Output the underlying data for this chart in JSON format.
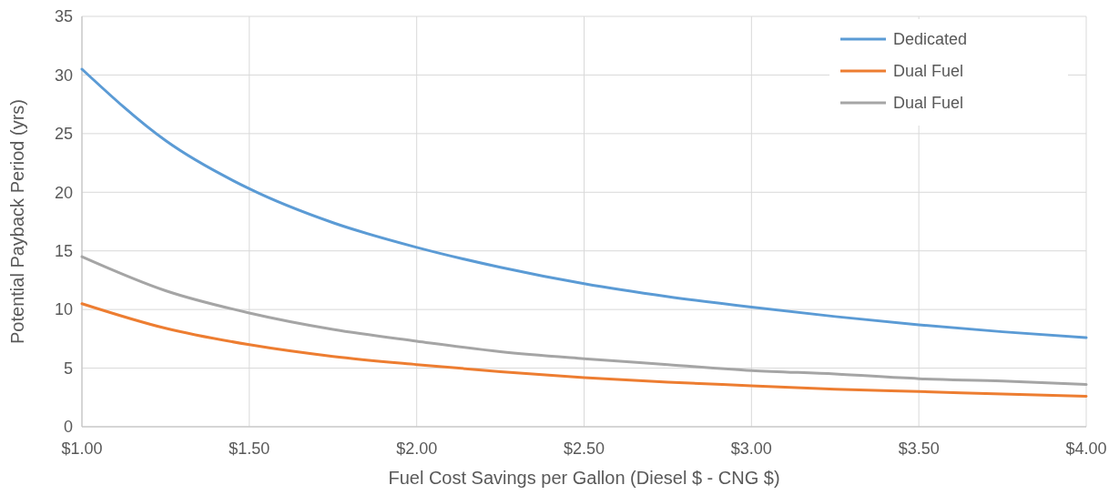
{
  "chart_data": {
    "type": "line",
    "xlabel": "Fuel Cost Savings per Gallon (Diesel $ - CNG $)",
    "ylabel": "Potential Payback Period (yrs)",
    "x": [
      1,
      1.25,
      1.5,
      1.75,
      2,
      2.25,
      2.5,
      2.75,
      3,
      3.25,
      3.5,
      3.75,
      4
    ],
    "series": [
      {
        "name": "Dedicated",
        "color": "#5b9bd5",
        "values": [
          30.5,
          24.4,
          20.3,
          17.4,
          15.3,
          13.6,
          12.2,
          11.1,
          10.2,
          9.4,
          8.7,
          8.1,
          7.6
        ]
      },
      {
        "name": "Dual Fuel",
        "color": "#ed7d31",
        "values": [
          10.5,
          8.4,
          7.0,
          6.0,
          5.3,
          4.7,
          4.2,
          3.8,
          3.5,
          3.2,
          3.0,
          2.8,
          2.6
        ]
      },
      {
        "name": "Dual Fuel",
        "color": "#a5a5a5",
        "values": [
          14.5,
          11.6,
          9.7,
          8.3,
          7.3,
          6.4,
          5.8,
          5.3,
          4.8,
          4.5,
          4.1,
          3.9,
          3.6
        ]
      }
    ],
    "xlim": [
      1,
      4
    ],
    "xticks": [
      {
        "value": 1,
        "label": "$1.00"
      },
      {
        "value": 1.5,
        "label": "$1.50"
      },
      {
        "value": 2,
        "label": "$2.00"
      },
      {
        "value": 2.5,
        "label": "$2.50"
      },
      {
        "value": 3,
        "label": "$3.00"
      },
      {
        "value": 3.5,
        "label": "$3.50"
      },
      {
        "value": 4,
        "label": "$4.00"
      }
    ],
    "ylim": [
      0,
      35
    ],
    "yticks": [
      0,
      5,
      10,
      15,
      20,
      25,
      30,
      35
    ],
    "grid": true,
    "legend": "top right",
    "marker": "none",
    "line_style": "solid"
  }
}
